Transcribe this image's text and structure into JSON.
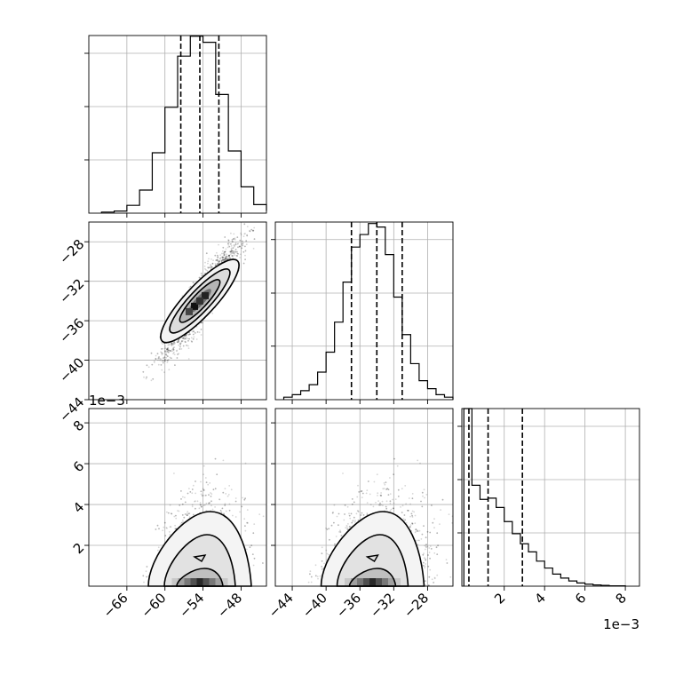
{
  "chart_data": [
    {
      "type": "histogram",
      "panel": "p1-marginal",
      "bin_edges": [
        -70,
        -68,
        -66,
        -64,
        -62,
        -60,
        -58,
        -56,
        -54,
        -52,
        -50,
        -48,
        -46,
        -44
      ],
      "counts": [
        3,
        6,
        22,
        65,
        170,
        298,
        442,
        498,
        481,
        334,
        175,
        74,
        24,
        7
      ],
      "quantiles": [
        -57.5,
        -54.5,
        -51.5
      ],
      "x_range": [
        -72,
        -44
      ],
      "y_range": [
        0,
        500
      ],
      "grid": true
    },
    {
      "type": "histogram",
      "panel": "p2-marginal",
      "bin_edges": [
        -45,
        -44,
        -43,
        -42,
        -41,
        -40,
        -39,
        -38,
        -37,
        -36,
        -35,
        -34,
        -33,
        -32,
        -31,
        -30,
        -29,
        -28,
        -27,
        -26,
        -25
      ],
      "counts": [
        5,
        10,
        18,
        30,
        55,
        95,
        155,
        235,
        305,
        330,
        352,
        345,
        290,
        205,
        130,
        72,
        38,
        22,
        10,
        5
      ],
      "quantiles": [
        -37,
        -34,
        -31
      ],
      "x_range": [
        -46,
        -25
      ],
      "y_range": [
        0,
        355
      ],
      "grid": true,
      "y_ticks": [],
      "x_ticks": [
        -44,
        -40,
        -36,
        -32,
        -28
      ]
    },
    {
      "type": "histogram",
      "panel": "p3-marginal",
      "bin_edges": [
        0.0,
        0.4,
        0.8,
        1.2,
        1.6,
        2.0,
        2.4,
        2.8,
        3.2,
        3.6,
        4.0,
        4.4,
        4.8,
        5.2,
        5.6,
        6.0,
        6.4,
        6.8,
        7.2,
        7.6,
        8.0
      ],
      "counts": [
        440,
        250,
        215,
        218,
        195,
        160,
        130,
        105,
        85,
        62,
        45,
        30,
        20,
        13,
        8,
        5,
        3,
        2,
        1,
        1
      ],
      "quantiles": [
        0.25,
        1.2,
        2.9
      ],
      "x_range": [
        -0.1,
        8.7
      ],
      "y_range": [
        0,
        440
      ],
      "grid": true,
      "x_ticks": [
        2,
        4,
        6,
        8
      ],
      "x_offset_label": "1e−3"
    },
    {
      "type": "scatter",
      "panel": "p2-vs-p1",
      "x_range": [
        -72,
        -44
      ],
      "y_range": [
        -44,
        -26
      ],
      "x_ticks": [],
      "y_ticks": [
        -28,
        -32,
        -36,
        -40,
        -44
      ],
      "density": "correlated-ellipse",
      "center": [
        -54.5,
        -34
      ],
      "grid": true
    },
    {
      "type": "scatter",
      "panel": "p3-vs-p1",
      "x_range": [
        -72,
        -44
      ],
      "y_range": [
        0,
        8.7
      ],
      "x_ticks": [
        -66,
        -60,
        -54,
        -48
      ],
      "y_ticks": [
        2,
        4,
        6,
        8
      ],
      "y_offset_label": "1e−3",
      "grid": true
    },
    {
      "type": "scatter",
      "panel": "p3-vs-p2",
      "x_range": [
        -46,
        -25
      ],
      "y_range": [
        0,
        8.7
      ],
      "x_ticks": [
        -44,
        -40,
        -36,
        -32,
        -28
      ],
      "y_ticks": [],
      "grid": true
    }
  ]
}
